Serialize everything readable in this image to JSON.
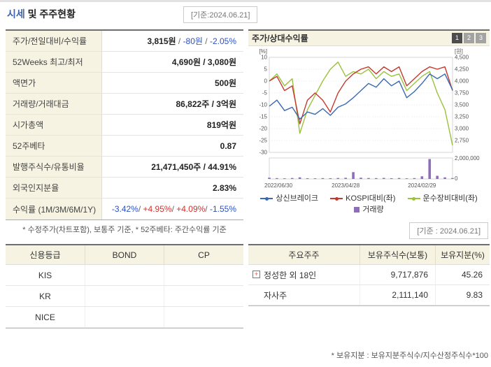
{
  "page": {
    "title_highlight": "시세",
    "title_rest": " 및 주주현황",
    "asof_top": "[기준:2024.06.21]",
    "asof_chart": "[기준 : 2024.06.21]",
    "quote_footnote": "* 수정주가(차트포함), 보통주 기준, * 52주베타: 주간수익률 기준",
    "holders_footnote": "* 보유지분 : 보유지분주식수/지수산정주식수*100"
  },
  "colors": {
    "accent_title": "#3c64ad",
    "down": "#2b50c8",
    "up": "#d0312d",
    "label_bg": "#f7f3e3",
    "tab_active": "#4d4d4d",
    "tab_inactive": "#a3a3a3"
  },
  "quote": {
    "rows": [
      {
        "label": "주가/전일대비/수익률",
        "parts": [
          {
            "t": "3,815원",
            "c": "strong"
          },
          {
            "t": " / ",
            "c": "plain"
          },
          {
            "t": "-80원",
            "c": "down"
          },
          {
            "t": " / ",
            "c": "plain"
          },
          {
            "t": "-2.05%",
            "c": "down"
          }
        ]
      },
      {
        "label": "52Weeks 최고/최저",
        "parts": [
          {
            "t": "4,690원 / 3,080원",
            "c": "strong"
          }
        ]
      },
      {
        "label": "액면가",
        "parts": [
          {
            "t": "500원",
            "c": "strong"
          }
        ]
      },
      {
        "label": "거래량/거래대금",
        "parts": [
          {
            "t": "86,822주 / 3억원",
            "c": "strong"
          }
        ]
      },
      {
        "label": "시가총액",
        "parts": [
          {
            "t": "819억원",
            "c": "strong"
          }
        ]
      },
      {
        "label": "52주베타",
        "parts": [
          {
            "t": "0.87",
            "c": "strong"
          }
        ]
      },
      {
        "label": "발행주식수/유통비율",
        "parts": [
          {
            "t": "21,471,450주 / 44.91%",
            "c": "strong"
          }
        ]
      },
      {
        "label": "외국인지분율",
        "parts": [
          {
            "t": "2.83%",
            "c": "strong"
          }
        ]
      },
      {
        "label": "수익률 (1M/3M/6M/1Y)",
        "parts": [
          {
            "t": "-3.42%",
            "c": "down"
          },
          {
            "t": "/ ",
            "c": "plain"
          },
          {
            "t": "+4.95%",
            "c": "up"
          },
          {
            "t": "/ ",
            "c": "plain"
          },
          {
            "t": "+4.09%",
            "c": "up"
          },
          {
            "t": "/ ",
            "c": "plain"
          },
          {
            "t": "-1.55%",
            "c": "down"
          }
        ]
      }
    ]
  },
  "credit": {
    "headers": [
      "신용등급",
      "BOND",
      "CP"
    ],
    "rows": [
      {
        "agency": "KIS",
        "bond": "",
        "cp": ""
      },
      {
        "agency": "KR",
        "bond": "",
        "cp": ""
      },
      {
        "agency": "NICE",
        "bond": "",
        "cp": ""
      }
    ]
  },
  "holders": {
    "headers": [
      "주요주주",
      "보유주식수(보통)",
      "보유지분(%)"
    ],
    "rows": [
      {
        "icon": true,
        "name": "정성한 외 18인",
        "shares": "9,717,876",
        "ratio": "45.26"
      },
      {
        "icon": false,
        "name": "자사주",
        "shares": "2,111,140",
        "ratio": "9.83"
      }
    ]
  },
  "chart_header": {
    "title": "주가/상대수익률",
    "tabs": [
      "1",
      "2",
      "3"
    ],
    "active_tab": "1"
  },
  "chart_data": {
    "type": "line",
    "title": "주가/상대수익률",
    "n_points": 25,
    "x_ticks": [
      {
        "index": 0,
        "label": "2022/06/30"
      },
      {
        "index": 10,
        "label": "2023/04/28"
      },
      {
        "index": 20,
        "label": "2024/02/29"
      }
    ],
    "left_axis": {
      "label": "[%]",
      "min": -30,
      "max": 10,
      "ticks": [
        10,
        5,
        0,
        -5,
        -10,
        -15,
        -20,
        -25,
        -30
      ]
    },
    "right_axis": {
      "label": "[원]",
      "min": 2500,
      "max": 4500,
      "ticks": [
        4500,
        4250,
        4000,
        3750,
        3500,
        3250,
        3000,
        2750
      ]
    },
    "volume_axis": {
      "max": 2000000,
      "ticks": [
        "2,000,000",
        "0"
      ]
    },
    "series": [
      {
        "name": "상신브레이크",
        "color": "#3a68b2",
        "axis": "price",
        "kind": "line",
        "values": [
          3470,
          3600,
          3380,
          3450,
          3200,
          3350,
          3300,
          3420,
          3280,
          3450,
          3520,
          3650,
          3800,
          3950,
          3870,
          4050,
          3900,
          4000,
          3650,
          3780,
          3950,
          4150,
          4050,
          4150,
          3815
        ]
      },
      {
        "name": "KOSPI대비(좌)",
        "color": "#c23a2e",
        "axis": "percent",
        "kind": "line",
        "values": [
          0,
          2,
          -4,
          -2,
          -18,
          -8,
          -5,
          -8,
          -13,
          -5,
          0,
          3,
          5,
          6,
          3,
          6,
          4,
          6,
          -2,
          1,
          4,
          6,
          5,
          6,
          -4
        ]
      },
      {
        "name": "운수장비대비(좌)",
        "color": "#9cc13c",
        "axis": "percent",
        "kind": "line",
        "values": [
          0,
          3,
          -2,
          1,
          -22,
          -12,
          -6,
          0,
          5,
          8,
          2,
          4,
          3,
          5,
          1,
          4,
          2,
          3,
          -4,
          -1,
          2,
          4,
          -5,
          -12,
          -27
        ]
      },
      {
        "name": "거래량",
        "color": "#8e6dbd",
        "axis": "volume",
        "kind": "bar",
        "values": [
          120000,
          80000,
          60000,
          90000,
          150000,
          70000,
          60000,
          80000,
          70000,
          90000,
          110000,
          650000,
          120000,
          90000,
          80000,
          100000,
          70000,
          90000,
          60000,
          80000,
          250000,
          1900000,
          300000,
          150000,
          86822
        ]
      }
    ]
  }
}
